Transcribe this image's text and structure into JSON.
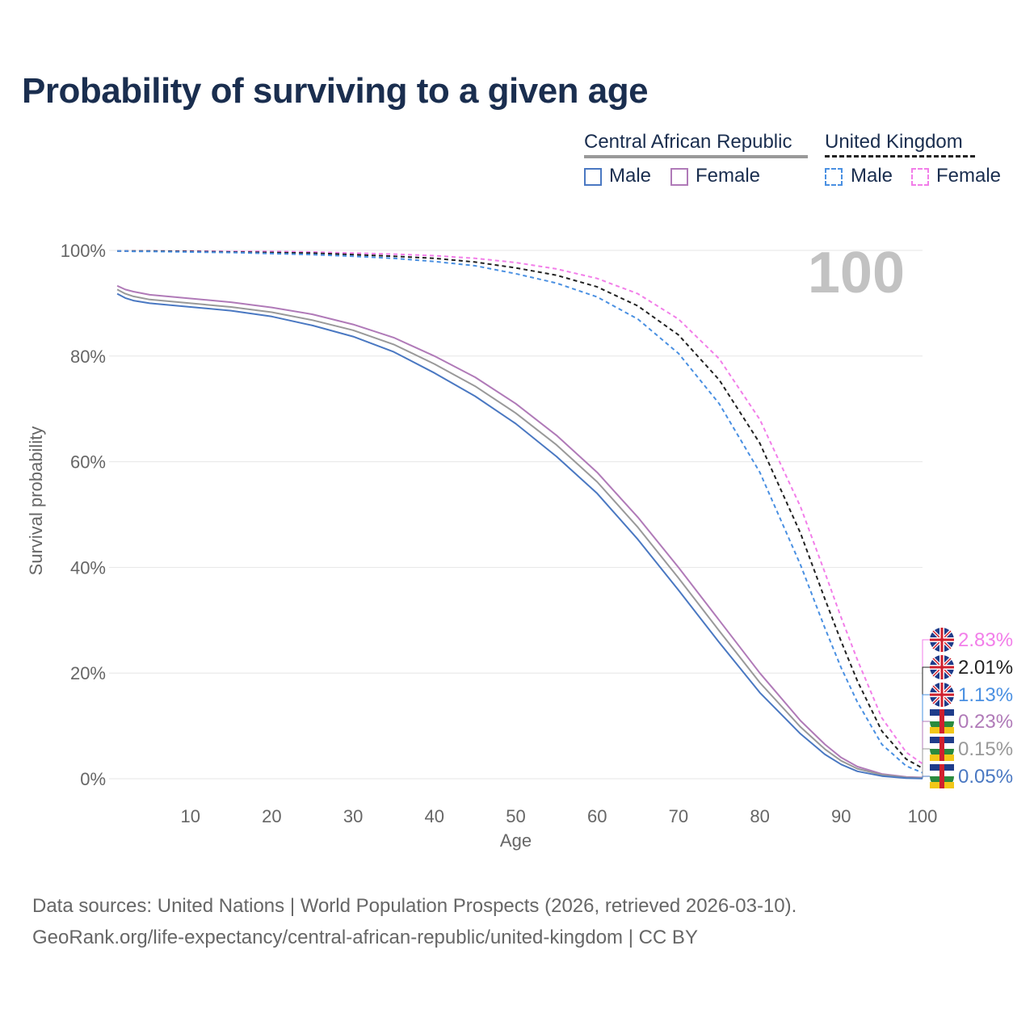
{
  "chart_data": {
    "type": "line",
    "title": "Probability of surviving to a given age",
    "xlabel": "Age",
    "ylabel": "Survival probability",
    "xlim": [
      0,
      100
    ],
    "ylim": [
      0,
      100
    ],
    "x_ticks": [
      10,
      20,
      30,
      40,
      50,
      60,
      70,
      80,
      90,
      100
    ],
    "y_ticks": [
      0,
      20,
      40,
      60,
      80,
      100
    ],
    "y_tick_labels": [
      "0%",
      "20%",
      "40%",
      "60%",
      "80%",
      "100%"
    ],
    "age_marker": "100",
    "x": [
      0,
      1,
      2,
      3,
      5,
      10,
      15,
      20,
      25,
      30,
      35,
      40,
      45,
      50,
      55,
      60,
      65,
      70,
      75,
      80,
      85,
      88,
      90,
      92,
      95,
      98,
      100
    ],
    "series": [
      {
        "name": "Central African Republic Female",
        "country": "Central African Republic",
        "sex": "Female",
        "color": "#b07ab8",
        "dashed": false,
        "end_label": "0.23%",
        "values": [
          94.3,
          93.3,
          92.6,
          92.2,
          91.6,
          90.9,
          90.2,
          89.2,
          87.9,
          86.0,
          83.5,
          80.0,
          76.0,
          71.0,
          65.0,
          58.0,
          49.5,
          40.0,
          30.0,
          20.0,
          11.0,
          6.5,
          4.0,
          2.3,
          0.9,
          0.35,
          0.23
        ]
      },
      {
        "name": "Central African Republic Total",
        "country": "Central African Republic",
        "sex": "Total",
        "color": "#999999",
        "dashed": false,
        "end_label": "0.15%",
        "values": [
          93.6,
          92.6,
          91.8,
          91.3,
          90.7,
          90.0,
          89.3,
          88.3,
          86.8,
          84.9,
          82.2,
          78.5,
          74.3,
          69.2,
          63.2,
          56.2,
          47.6,
          38.0,
          28.0,
          18.2,
          9.8,
          5.6,
          3.4,
          1.9,
          0.75,
          0.25,
          0.15
        ]
      },
      {
        "name": "Central African Republic Male",
        "country": "Central African Republic",
        "sex": "Male",
        "color": "#4a78c2",
        "dashed": false,
        "end_label": "0.05%",
        "values": [
          93.0,
          91.8,
          91.0,
          90.5,
          90.0,
          89.3,
          88.6,
          87.5,
          85.8,
          83.7,
          80.8,
          76.8,
          72.4,
          67.2,
          61.0,
          54.0,
          45.3,
          35.7,
          25.8,
          16.3,
          8.5,
          4.6,
          2.7,
          1.4,
          0.5,
          0.12,
          0.05
        ]
      },
      {
        "name": "United Kingdom Female",
        "country": "United Kingdom",
        "sex": "Female",
        "color": "#f27ee9",
        "dashed": true,
        "end_label": "2.83%",
        "values": [
          100,
          99.9,
          99.9,
          99.9,
          99.9,
          99.9,
          99.8,
          99.8,
          99.7,
          99.5,
          99.3,
          99.0,
          98.5,
          97.7,
          96.5,
          94.7,
          91.8,
          87.0,
          79.5,
          68.0,
          51.5,
          39.0,
          30.5,
          22.5,
          11.5,
          5.0,
          2.83
        ]
      },
      {
        "name": "United Kingdom Total",
        "country": "United Kingdom",
        "sex": "Total",
        "color": "#222222",
        "dashed": true,
        "end_label": "2.01%",
        "values": [
          100,
          99.9,
          99.9,
          99.9,
          99.9,
          99.8,
          99.7,
          99.6,
          99.5,
          99.2,
          98.9,
          98.5,
          97.8,
          96.7,
          95.3,
          93.1,
          89.5,
          84.0,
          75.5,
          63.5,
          46.5,
          34.0,
          26.0,
          18.5,
          9.0,
          3.7,
          2.01
        ]
      },
      {
        "name": "United Kingdom Male",
        "country": "United Kingdom",
        "sex": "Male",
        "color": "#4a90e2",
        "dashed": true,
        "end_label": "1.13%",
        "values": [
          100,
          99.9,
          99.9,
          99.8,
          99.8,
          99.7,
          99.6,
          99.4,
          99.2,
          98.9,
          98.5,
          97.9,
          97.1,
          95.6,
          93.8,
          91.2,
          87.0,
          80.5,
          71.0,
          58.0,
          40.5,
          28.5,
          21.0,
          14.5,
          6.5,
          2.4,
          1.13
        ]
      }
    ],
    "legend": {
      "group1": "Central African Republic",
      "group2": "United Kingdom",
      "male": "Male",
      "female": "Female"
    },
    "source_line1": "Data sources: United Nations | World Population Prospects (2026, retrieved 2026-03-10).",
    "source_line2": "GeoRank.org/life-expectancy/central-african-republic/united-kingdom | CC BY"
  }
}
